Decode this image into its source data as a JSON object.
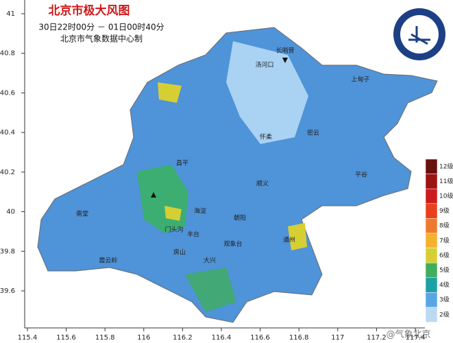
{
  "header": {
    "title": "北京市极大风图",
    "time": "30日22时00分 － 01日00时40分",
    "source": "北京市气象数据中心制"
  },
  "axes": {
    "x_ticks": [
      115.4,
      115.6,
      115.8,
      116,
      116.2,
      116.4,
      116.6,
      116.8,
      117,
      117.2,
      117.4
    ],
    "y_ticks": [
      41,
      40.8,
      40.6,
      40.4,
      40.2,
      40,
      39.8,
      39.6
    ]
  },
  "legend": {
    "items": [
      {
        "label": "12级",
        "color": "#6b1010"
      },
      {
        "label": "11级",
        "color": "#9c1414"
      },
      {
        "label": "10级",
        "color": "#cc1c1c"
      },
      {
        "label": "9级",
        "color": "#e8401e"
      },
      {
        "label": "8级",
        "color": "#f07a2c"
      },
      {
        "label": "7级",
        "color": "#f4b22e"
      },
      {
        "label": "6级",
        "color": "#d6cf34"
      },
      {
        "label": "5级",
        "color": "#3fae5e"
      },
      {
        "label": "4级",
        "color": "#1fa0a8"
      },
      {
        "label": "3级",
        "color": "#58a6e4"
      },
      {
        "label": "2级",
        "color": "#bcd9f2"
      }
    ]
  },
  "places": [
    "长哨营",
    "汤河口",
    "上甸子",
    "怀柔",
    "密云",
    "昌平",
    "顺义",
    "平谷",
    "海淀",
    "朝阳",
    "门头沟",
    "丰台",
    "房山",
    "大兴",
    "通州",
    "斋堂",
    "霞云岭",
    "观象台"
  ],
  "watermark": "@气象北京"
}
